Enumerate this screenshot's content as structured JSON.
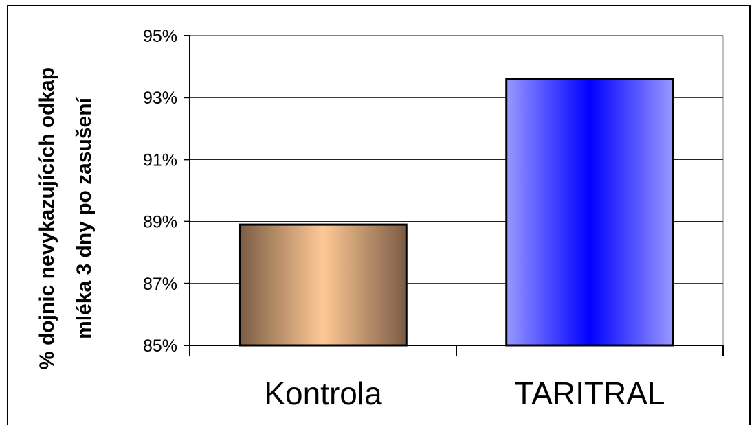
{
  "chart_data": {
    "type": "bar",
    "title": "",
    "xlabel": "",
    "ylabel": "% dojnic nevykazujících odkap mléka 3 dny po zasušení",
    "ylabel_lines": [
      "% dojnic nevykazujících odkap",
      "mléka 3 dny po zasušení"
    ],
    "categories": [
      "Kontrola",
      "TARITRAL"
    ],
    "values": [
      88.9,
      93.6
    ],
    "ylim": [
      85,
      95
    ],
    "yticks": [
      85,
      87,
      89,
      91,
      93,
      95
    ],
    "ytick_labels": [
      "85%",
      "87%",
      "89%",
      "91%",
      "93%",
      "95%"
    ],
    "grid": true,
    "legend": "none",
    "bar_colors": [
      {
        "edge": "#7a5c44",
        "center": "#ffc996"
      },
      {
        "edge": "#9999ff",
        "center": "#0000ff"
      }
    ]
  }
}
